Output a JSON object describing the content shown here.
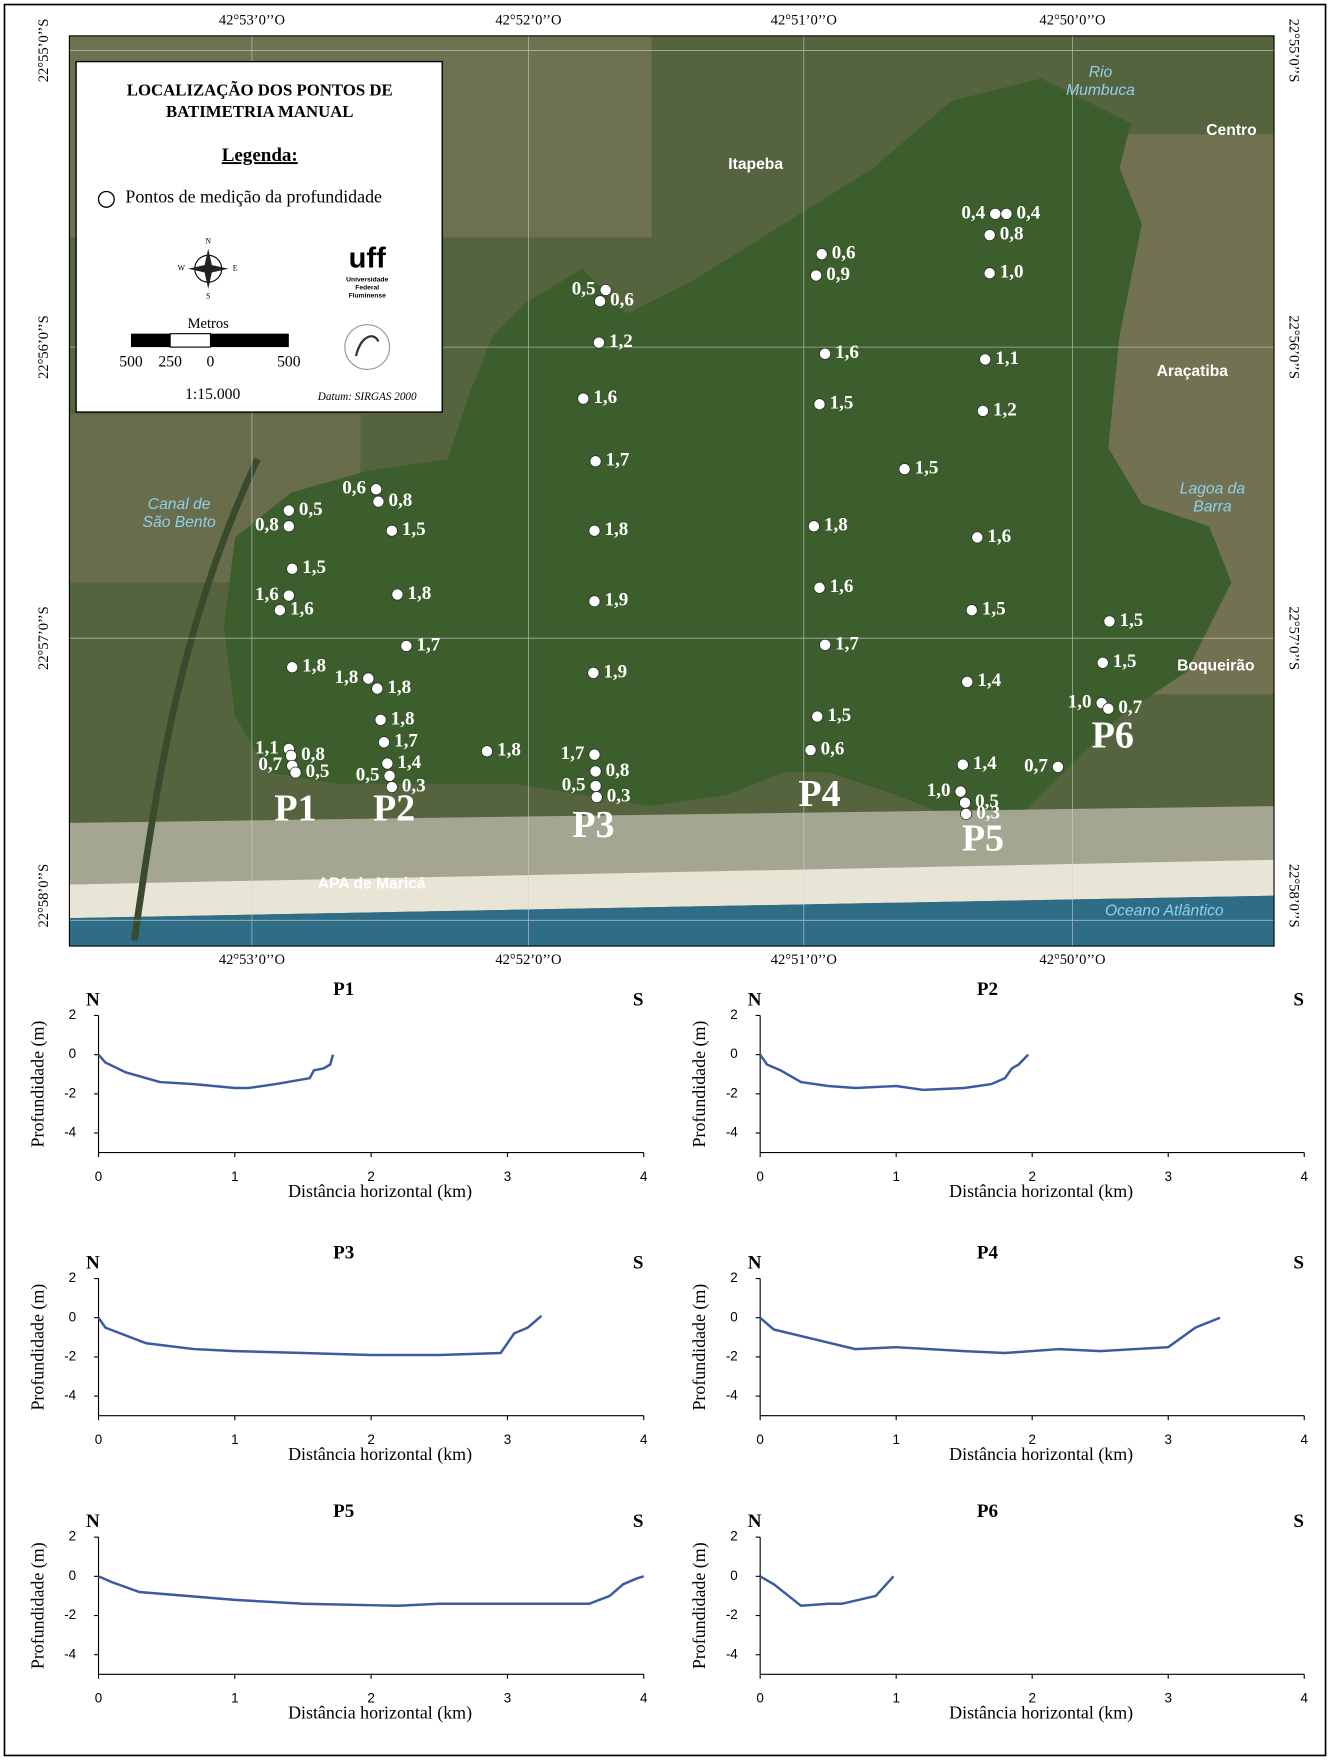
{
  "map": {
    "lon_labels": [
      "42°53’0’’O",
      "42°52’0’’O",
      "42°51’0’’O",
      "42°50’0’’O"
    ],
    "lat_labels": [
      "22°55’0’’S",
      "22°56’0’’S",
      "22°57’0’’S",
      "22°58’0’’S"
    ],
    "legend": {
      "title": [
        "LOCALIZAÇÃO DOS PONTOS DE",
        "BATIMETRIA MANUAL"
      ],
      "heading": "Legenda:",
      "item": "Pontos de medição da profundidade",
      "compass": [
        "N",
        "S",
        "W",
        "E"
      ],
      "logo": {
        "name": "uff",
        "lines": [
          "Universidade",
          "Federal",
          "Fluminense"
        ]
      },
      "scale_title": "Metros",
      "scale_labels": [
        "500",
        "250",
        "0",
        "500"
      ],
      "scale": "1:15.000",
      "datum": "Datum: SIRGAS 2000"
    },
    "places": [
      [
        "Rio",
        "Mumbuca"
      ],
      [
        "Centro"
      ],
      [
        "Itapeba"
      ],
      [
        "Araçatiba"
      ],
      [
        "Lagoa da",
        "Barra"
      ],
      [
        "Canal de",
        "São Bento"
      ],
      [
        "Boqueirão"
      ],
      [
        "APA de Maricá"
      ],
      [
        "Oceano Atlântico"
      ]
    ],
    "profiles": [
      "P1",
      "P2",
      "P3",
      "P4",
      "P5",
      "P6"
    ],
    "depth_points": [
      "0,4",
      "0,4",
      "0,8",
      "1,0",
      "1,1",
      "1,2",
      "1,6",
      "1,5",
      "1,4",
      "1,4",
      "1,0",
      "0,5",
      "0,3",
      "1,5",
      "0,6",
      "0,9",
      "1,6",
      "1,5",
      "1,8",
      "1,6",
      "1,7",
      "1,5",
      "0,6",
      "0,5",
      "0,6",
      "1,2",
      "1,6",
      "1,7",
      "1,8",
      "1,9",
      "1,9",
      "1,7",
      "0,8",
      "0,5",
      "0,3",
      "1,8",
      "0,6",
      "0,8",
      "1,5",
      "1,8",
      "1,7",
      "1,8",
      "1,8",
      "1,8",
      "1,7",
      "1,4",
      "0,5",
      "0,3",
      "0,5",
      "0,8",
      "1,5",
      "1,6",
      "1,6",
      "1,8",
      "1,1",
      "0,8",
      "0,7",
      "0,5",
      "1,5",
      "1,5",
      "1,0",
      "0,7",
      "0,7"
    ]
  },
  "chart_data": [
    {
      "type": "line",
      "title": "P1",
      "annotations": [
        "N",
        "S"
      ],
      "xlabel": "Distância horizontal (km)",
      "ylabel": "Profundidade (m)",
      "xlim": [
        0,
        4
      ],
      "ylim": [
        -5,
        2
      ],
      "xticks": [
        0,
        1,
        2,
        3,
        4
      ],
      "yticks": [
        -4,
        -2,
        0,
        2
      ],
      "color": "#3a5ba0",
      "x": [
        0,
        0.05,
        0.2,
        0.45,
        0.7,
        1.0,
        1.1,
        1.3,
        1.55,
        1.58,
        1.65,
        1.7,
        1.72
      ],
      "y": [
        0,
        -0.4,
        -0.9,
        -1.4,
        -1.5,
        -1.7,
        -1.7,
        -1.5,
        -1.2,
        -0.8,
        -0.7,
        -0.5,
        0
      ]
    },
    {
      "type": "line",
      "title": "P2",
      "annotations": [
        "N",
        "S"
      ],
      "xlabel": "Distância horizontal (km)",
      "ylabel": "Profundidade (m)",
      "xlim": [
        0,
        4
      ],
      "ylim": [
        -5,
        2
      ],
      "xticks": [
        0,
        1,
        2,
        3,
        4
      ],
      "yticks": [
        -4,
        -2,
        0,
        2
      ],
      "color": "#3a5ba0",
      "x": [
        0,
        0.05,
        0.15,
        0.3,
        0.5,
        0.7,
        1.0,
        1.2,
        1.5,
        1.7,
        1.8,
        1.85,
        1.9,
        1.97
      ],
      "y": [
        0,
        -0.5,
        -0.8,
        -1.4,
        -1.6,
        -1.7,
        -1.6,
        -1.8,
        -1.7,
        -1.5,
        -1.2,
        -0.7,
        -0.5,
        0
      ]
    },
    {
      "type": "line",
      "title": "P3",
      "annotations": [
        "N",
        "S"
      ],
      "xlabel": "Distância horizontal (km)",
      "ylabel": "Profundidade (m)",
      "xlim": [
        0,
        4
      ],
      "ylim": [
        -5,
        2
      ],
      "xticks": [
        0,
        1,
        2,
        3,
        4
      ],
      "yticks": [
        -4,
        -2,
        0,
        2
      ],
      "color": "#3a5ba0",
      "x": [
        0,
        0.05,
        0.35,
        0.7,
        1.0,
        1.5,
        2.0,
        2.5,
        2.95,
        3.05,
        3.15,
        3.25
      ],
      "y": [
        0,
        -0.5,
        -1.3,
        -1.6,
        -1.7,
        -1.8,
        -1.9,
        -1.9,
        -1.8,
        -0.8,
        -0.5,
        0.1
      ]
    },
    {
      "type": "line",
      "title": "P4",
      "annotations": [
        "N",
        "S"
      ],
      "xlabel": "Distância horizontal (km)",
      "ylabel": "Profundidade (m)",
      "xlim": [
        0,
        4
      ],
      "ylim": [
        -5,
        2
      ],
      "xticks": [
        0,
        1,
        2,
        3,
        4
      ],
      "yticks": [
        -4,
        -2,
        0,
        2
      ],
      "color": "#3a5ba0",
      "x": [
        0,
        0.1,
        0.4,
        0.7,
        1.0,
        1.5,
        1.8,
        2.2,
        2.5,
        3.0,
        3.2,
        3.38
      ],
      "y": [
        0,
        -0.6,
        -1.1,
        -1.6,
        -1.5,
        -1.7,
        -1.8,
        -1.6,
        -1.7,
        -1.5,
        -0.5,
        0
      ]
    },
    {
      "type": "line",
      "title": "P5",
      "annotations": [
        "N",
        "S"
      ],
      "xlabel": "Distância horizontal (km)",
      "ylabel": "Profundidade (m)",
      "xlim": [
        0,
        4
      ],
      "ylim": [
        -5,
        2
      ],
      "xticks": [
        0,
        1,
        2,
        3,
        4
      ],
      "yticks": [
        -4,
        -2,
        0,
        2
      ],
      "color": "#3a5ba0",
      "x": [
        0,
        0.1,
        0.3,
        1.0,
        1.5,
        2.2,
        2.5,
        3.6,
        3.75,
        3.85,
        3.95,
        4.0
      ],
      "y": [
        0,
        -0.3,
        -0.8,
        -1.2,
        -1.4,
        -1.5,
        -1.4,
        -1.4,
        -1.0,
        -0.4,
        -0.1,
        0
      ]
    },
    {
      "type": "line",
      "title": "P6",
      "annotations": [
        "N",
        "S"
      ],
      "xlabel": "Distância horizontal (km)",
      "ylabel": "Profundidade (m)",
      "xlim": [
        0,
        4
      ],
      "ylim": [
        -5,
        2
      ],
      "xticks": [
        0,
        1,
        2,
        3,
        4
      ],
      "yticks": [
        -4,
        -2,
        0,
        2
      ],
      "color": "#3a5ba0",
      "x": [
        0,
        0.1,
        0.3,
        0.5,
        0.6,
        0.85,
        0.98
      ],
      "y": [
        0,
        -0.4,
        -1.5,
        -1.4,
        -1.4,
        -1.0,
        0
      ]
    }
  ]
}
